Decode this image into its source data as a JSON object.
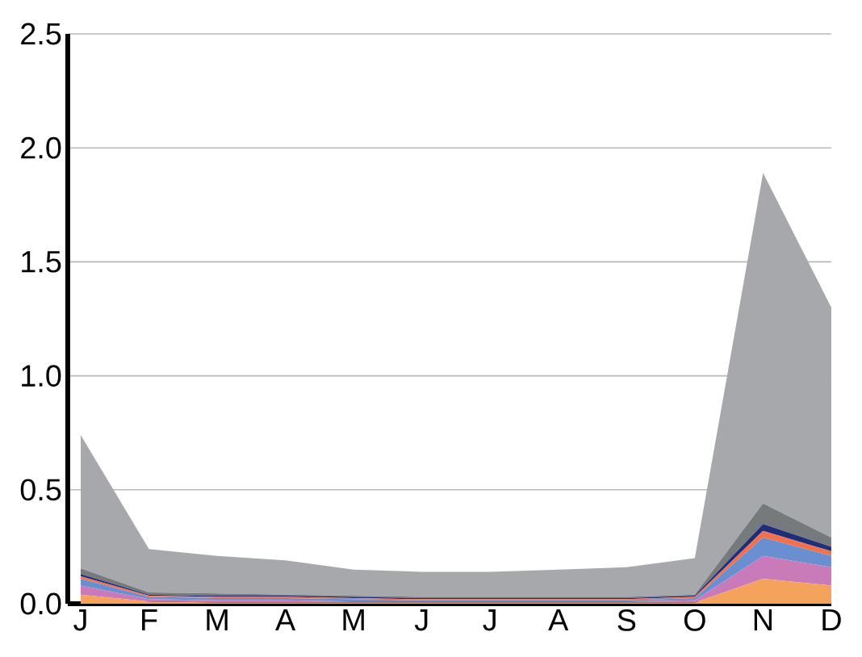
{
  "chart_data": {
    "type": "area",
    "stacked": true,
    "grid": "y",
    "categories": [
      "J",
      "F",
      "M",
      "A",
      "M",
      "J",
      "J",
      "A",
      "S",
      "O",
      "N",
      "D"
    ],
    "ylim": [
      0,
      2.5
    ],
    "yticks": [
      {
        "value": 0,
        "label": "0.0"
      },
      {
        "value": 0.5,
        "label": "0.5"
      },
      {
        "value": 1,
        "label": "1.0"
      },
      {
        "value": 1.5,
        "label": "1.5"
      },
      {
        "value": 2,
        "label": "2.0"
      },
      {
        "value": 2.5,
        "label": "2.5"
      }
    ],
    "series": [
      {
        "color": "#f5a25d",
        "values": [
          0.04,
          0.01,
          0.005,
          0.005,
          0.005,
          0.005,
          0.005,
          0.005,
          0.005,
          0.005,
          0.11,
          0.08
        ]
      },
      {
        "color": "#c87ab9",
        "values": [
          0.04,
          0.01,
          0.01,
          0.01,
          0.005,
          0.005,
          0.005,
          0.005,
          0.005,
          0.01,
          0.1,
          0.08
        ]
      },
      {
        "color": "#6a8fd1",
        "values": [
          0.03,
          0.01,
          0.01,
          0.01,
          0.01,
          0.005,
          0.005,
          0.005,
          0.005,
          0.01,
          0.08,
          0.05
        ]
      },
      {
        "color": "#f2704c",
        "values": [
          0.01,
          0.005,
          0.005,
          0.005,
          0.005,
          0.005,
          0.005,
          0.005,
          0.005,
          0.005,
          0.03,
          0.02
        ]
      },
      {
        "color": "#1f2e7a",
        "values": [
          0.01,
          0.005,
          0.005,
          0.005,
          0.005,
          0.005,
          0.005,
          0.005,
          0.005,
          0.005,
          0.03,
          0.02
        ]
      },
      {
        "color": "#767a7d",
        "values": [
          0.025,
          0.01,
          0.01,
          0.005,
          0.005,
          0.005,
          0.005,
          0.005,
          0.005,
          0.005,
          0.09,
          0.04
        ]
      },
      {
        "color": "#a7a8ab",
        "values": [
          0.585,
          0.19,
          0.165,
          0.15,
          0.115,
          0.11,
          0.11,
          0.12,
          0.13,
          0.16,
          1.45,
          1.01
        ]
      }
    ]
  }
}
